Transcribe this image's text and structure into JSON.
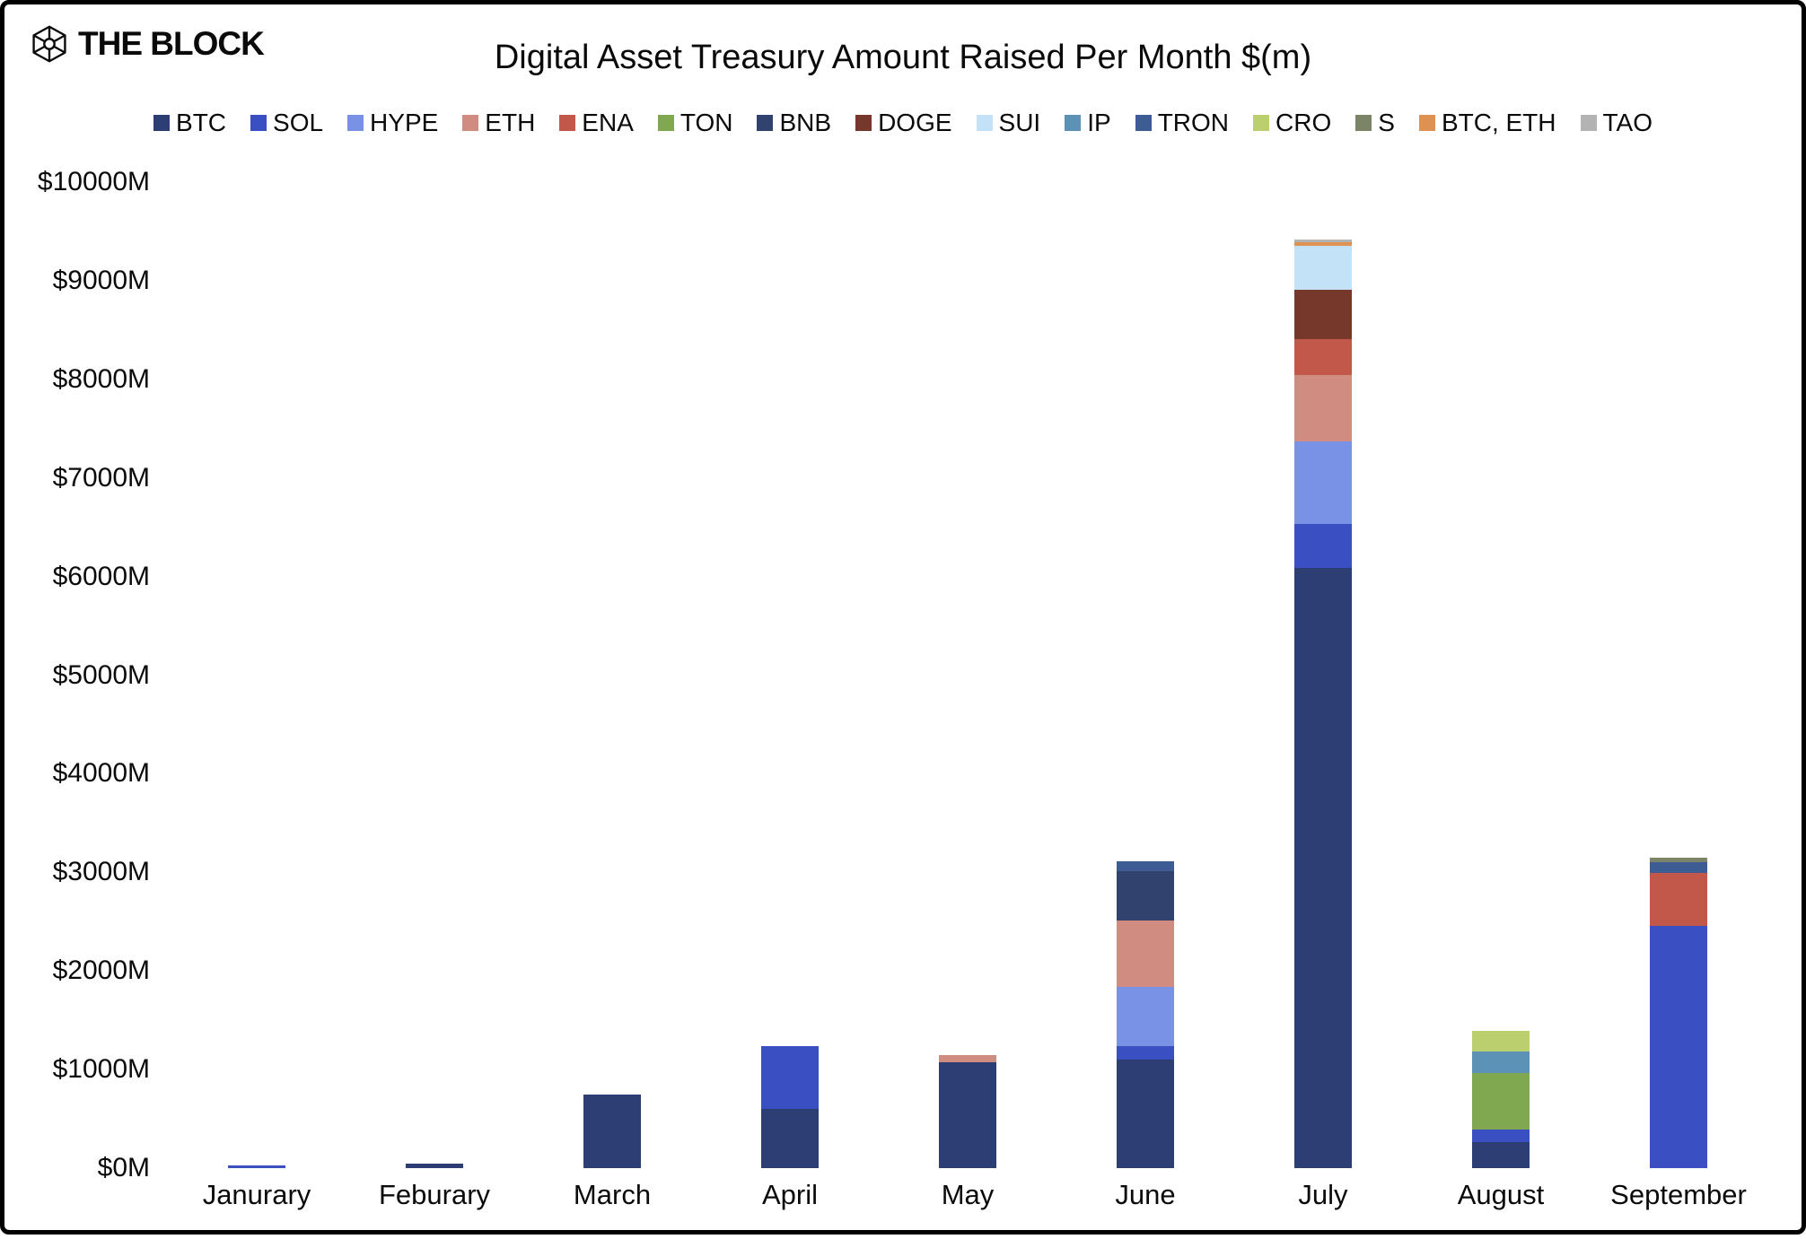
{
  "header": {
    "logo_text": "THE BLOCK",
    "title": "Digital Asset Treasury Amount Raised Per Month $(m)"
  },
  "chart_data": {
    "type": "bar",
    "stacked": true,
    "title": "Digital Asset Treasury Amount Raised Per Month $(m)",
    "xlabel": "",
    "ylabel": "",
    "ylim": [
      0,
      10000
    ],
    "ytick_step": 1000,
    "ytick_prefix": "$",
    "ytick_suffix": "M",
    "grid": false,
    "legend_position": "top",
    "categories": [
      "Janurary",
      "Feburary",
      "March",
      "April",
      "May",
      "June",
      "July",
      "August",
      "September"
    ],
    "series": [
      {
        "name": "BTC",
        "color": "#2D3E74",
        "values": [
          0,
          45,
          750,
          600,
          1070,
          1100,
          6085,
          260,
          0
        ]
      },
      {
        "name": "SOL",
        "color": "#3A50C2",
        "values": [
          30,
          0,
          0,
          640,
          0,
          140,
          450,
          130,
          2460
        ]
      },
      {
        "name": "HYPE",
        "color": "#7A92E6",
        "values": [
          0,
          0,
          0,
          0,
          0,
          595,
          835,
          0,
          0
        ]
      },
      {
        "name": "ETH",
        "color": "#D08C80",
        "values": [
          0,
          0,
          0,
          0,
          80,
          675,
          675,
          0,
          0
        ]
      },
      {
        "name": "ENA",
        "color": "#C2584A",
        "values": [
          0,
          0,
          0,
          0,
          0,
          0,
          365,
          0,
          530
        ]
      },
      {
        "name": "TON",
        "color": "#7FA850",
        "values": [
          0,
          0,
          0,
          0,
          0,
          0,
          0,
          575,
          0
        ]
      },
      {
        "name": "BNB",
        "color": "#32426F",
        "values": [
          0,
          0,
          0,
          0,
          0,
          505,
          0,
          0,
          0
        ]
      },
      {
        "name": "DOGE",
        "color": "#76382A",
        "values": [
          0,
          0,
          0,
          0,
          0,
          0,
          500,
          0,
          0
        ]
      },
      {
        "name": "SUI",
        "color": "#C3E2F8",
        "values": [
          0,
          0,
          0,
          0,
          0,
          0,
          440,
          0,
          0
        ]
      },
      {
        "name": "IP",
        "color": "#5B92B6",
        "values": [
          0,
          0,
          0,
          0,
          0,
          0,
          0,
          220,
          0
        ]
      },
      {
        "name": "TRON",
        "color": "#3D5C93",
        "values": [
          0,
          0,
          0,
          0,
          0,
          100,
          0,
          0,
          110
        ]
      },
      {
        "name": "CRO",
        "color": "#BCCF6F",
        "values": [
          0,
          0,
          0,
          0,
          0,
          0,
          0,
          210,
          0
        ]
      },
      {
        "name": "S",
        "color": "#7C8468",
        "values": [
          0,
          0,
          0,
          0,
          0,
          0,
          0,
          0,
          45
        ]
      },
      {
        "name": "BTC, ETH",
        "color": "#DE9150",
        "values": [
          0,
          0,
          0,
          0,
          0,
          0,
          37,
          0,
          0
        ]
      },
      {
        "name": "TAO",
        "color": "#B3B3B3",
        "values": [
          0,
          0,
          0,
          0,
          0,
          0,
          27,
          0,
          0
        ]
      }
    ],
    "totals_by_month": [
      30,
      45,
      750,
      1240,
      1150,
      3115,
      9414,
      1395,
      3145
    ]
  }
}
